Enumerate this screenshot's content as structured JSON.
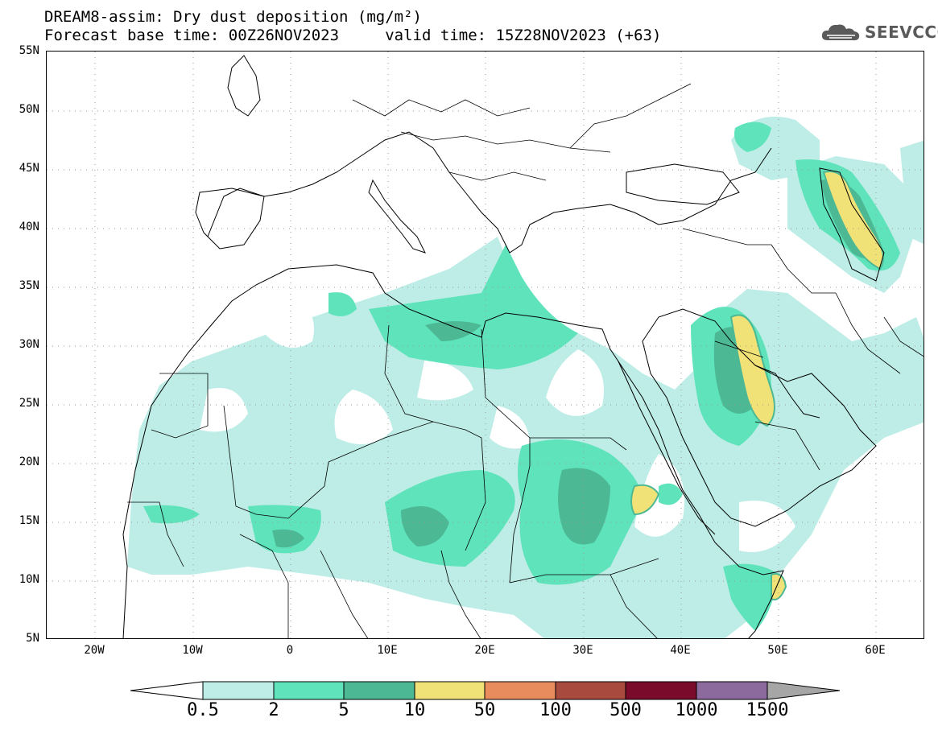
{
  "header": {
    "title_line1": "DREAM8-assim: Dry dust deposition (mg/m²)",
    "title_line2": "Forecast base time: 00Z26NOV2023     valid time: 15Z28NOV2023 (+63)",
    "logo_text": "SEEVCCC"
  },
  "map": {
    "lat_labels": [
      "55N",
      "50N",
      "45N",
      "40N",
      "35N",
      "30N",
      "25N",
      "20N",
      "15N",
      "10N",
      "5N"
    ],
    "lon_labels": [
      "20W",
      "10W",
      "0",
      "10E",
      "20E",
      "30E",
      "40E",
      "50E",
      "60E"
    ],
    "extent": {
      "lon_min": -25,
      "lon_max": 65,
      "lat_min": 5,
      "lat_max": 55
    }
  },
  "legend": {
    "labels": [
      "0.5",
      "2",
      "5",
      "10",
      "50",
      "100",
      "500",
      "1000",
      "1500"
    ],
    "colors": [
      "#bdede6",
      "#5fe3bb",
      "#4db894",
      "#f0e277",
      "#e88c5e",
      "#a94a3f",
      "#7a0b2b",
      "#8c6a9e",
      "#a6a6a6"
    ],
    "under_color": "#ffffff"
  }
}
